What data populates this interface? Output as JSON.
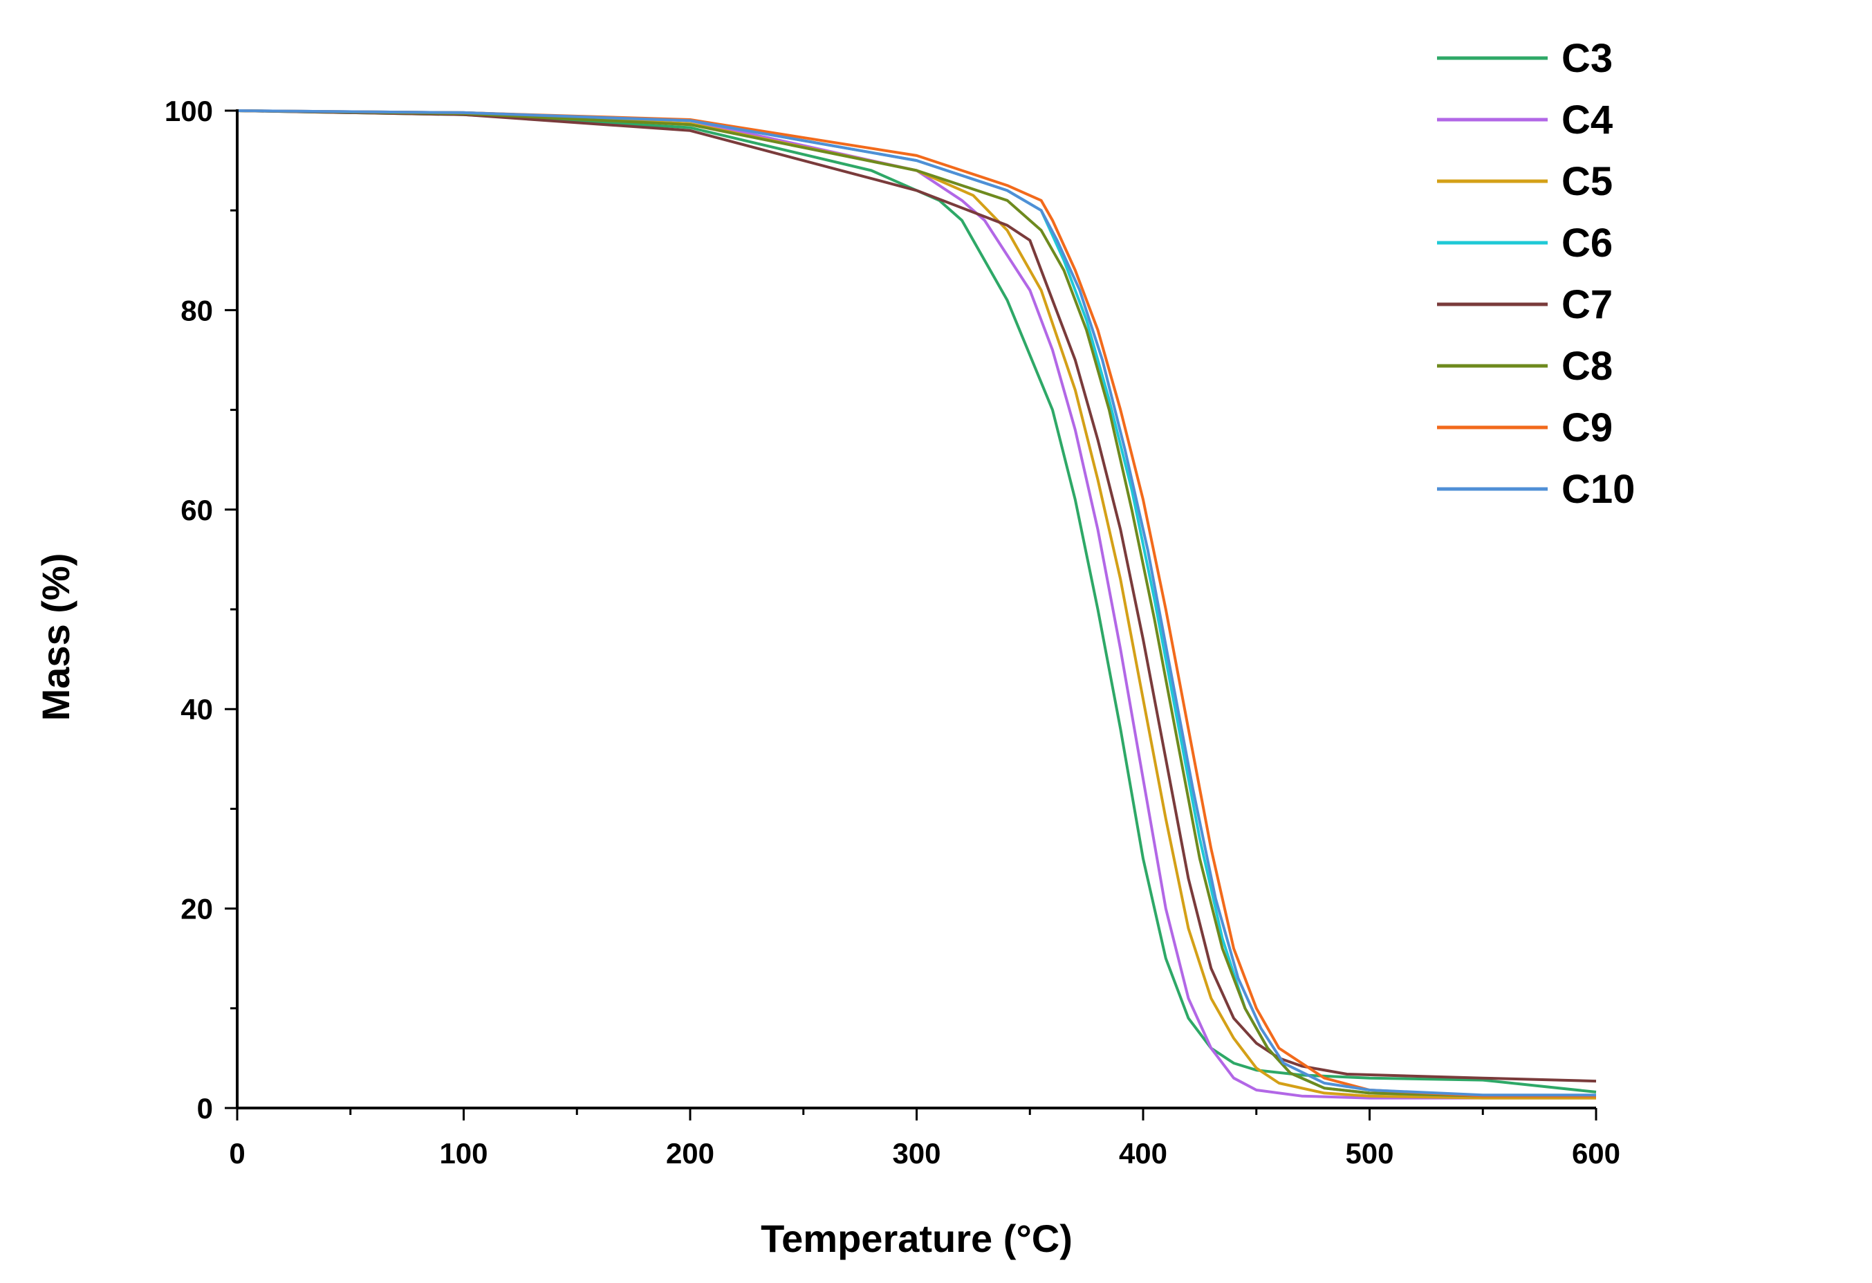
{
  "chart_data": {
    "type": "line",
    "title": "",
    "xlabel": "Temperature (°C)",
    "ylabel": "Mass (%)",
    "xlim": [
      0,
      600
    ],
    "ylim": [
      0,
      100
    ],
    "xticks": [
      0,
      100,
      200,
      300,
      400,
      500,
      600
    ],
    "yticks": [
      0,
      20,
      40,
      60,
      80,
      100
    ],
    "xtick_labels": [
      "0",
      "100",
      "200",
      "300",
      "400",
      "500",
      "600"
    ],
    "ytick_labels": [
      "0",
      "20",
      "40",
      "60",
      "80",
      "100"
    ],
    "grid": false,
    "legend_position": "top-right",
    "series": [
      {
        "name": "C3",
        "color": "#2EA867",
        "x": [
          0,
          100,
          200,
          280,
          310,
          320,
          340,
          360,
          370,
          380,
          390,
          400,
          410,
          420,
          430,
          440,
          450,
          470,
          500,
          550,
          600
        ],
        "y": [
          100,
          99.6,
          98.3,
          94,
          91,
          89,
          81,
          70,
          61,
          50,
          38,
          25,
          15,
          9,
          6,
          4.5,
          3.8,
          3.3,
          3.0,
          2.8,
          1.6
        ]
      },
      {
        "name": "C4",
        "color": "#B267E6",
        "x": [
          0,
          100,
          200,
          300,
          320,
          330,
          350,
          360,
          370,
          380,
          390,
          400,
          410,
          420,
          430,
          440,
          450,
          470,
          500,
          550,
          600
        ],
        "y": [
          100,
          99.8,
          99.0,
          94,
          91,
          89,
          82,
          76,
          68,
          58,
          46,
          33,
          20,
          11,
          6,
          3,
          1.8,
          1.2,
          1.0,
          1.0,
          1.0
        ]
      },
      {
        "name": "C5",
        "color": "#D4A017",
        "x": [
          0,
          100,
          200,
          300,
          325,
          340,
          355,
          370,
          380,
          390,
          400,
          410,
          420,
          430,
          440,
          450,
          460,
          480,
          500,
          550,
          600
        ],
        "y": [
          100,
          99.7,
          98.7,
          94,
          91.5,
          88,
          82,
          72,
          63,
          53,
          41,
          29,
          18,
          11,
          7,
          4,
          2.5,
          1.5,
          1.2,
          1.0,
          1.0
        ]
      },
      {
        "name": "C6",
        "color": "#1FC9D6",
        "x": [
          0,
          100,
          200,
          300,
          340,
          355,
          365,
          375,
          385,
          395,
          405,
          415,
          425,
          435,
          445,
          455,
          465,
          480,
          500,
          550,
          600
        ],
        "y": [
          100,
          99.8,
          99.0,
          95,
          92,
          90,
          85,
          79,
          71,
          62,
          51,
          39,
          27,
          17,
          10,
          6,
          3.5,
          2.0,
          1.5,
          1.2,
          1.2
        ]
      },
      {
        "name": "C7",
        "color": "#7A3B3B",
        "x": [
          0,
          100,
          200,
          300,
          340,
          350,
          360,
          370,
          380,
          390,
          400,
          410,
          420,
          430,
          440,
          450,
          460,
          470,
          490,
          550,
          600
        ],
        "y": [
          100,
          99.6,
          98.0,
          92,
          88.5,
          87,
          81,
          75,
          67,
          58,
          47,
          35,
          23,
          14,
          9,
          6.5,
          5,
          4.2,
          3.4,
          3.0,
          2.7
        ]
      },
      {
        "name": "C8",
        "color": "#6E8A1E",
        "x": [
          0,
          100,
          200,
          300,
          340,
          355,
          365,
          375,
          385,
          395,
          405,
          415,
          425,
          435,
          445,
          455,
          465,
          480,
          500,
          550,
          600
        ],
        "y": [
          100,
          99.7,
          98.6,
          94,
          91,
          88,
          84,
          78,
          70,
          60,
          49,
          37,
          25,
          16,
          10,
          6,
          3.5,
          2,
          1.5,
          1.2,
          1.2
        ]
      },
      {
        "name": "C9",
        "color": "#F26A1B",
        "x": [
          0,
          100,
          200,
          300,
          340,
          355,
          360,
          370,
          380,
          390,
          400,
          410,
          420,
          430,
          440,
          450,
          460,
          480,
          500,
          550,
          600
        ],
        "y": [
          100,
          99.8,
          99.1,
          95.5,
          92.5,
          91,
          89,
          84,
          78,
          70,
          61,
          50,
          38,
          26,
          16,
          10,
          6,
          3,
          1.8,
          1.2,
          1.2
        ]
      },
      {
        "name": "C10",
        "color": "#4F8FD6",
        "x": [
          0,
          100,
          200,
          300,
          340,
          355,
          362,
          372,
          382,
          392,
          402,
          412,
          422,
          432,
          442,
          452,
          462,
          480,
          500,
          550,
          600
        ],
        "y": [
          100,
          99.8,
          99.0,
          95,
          92,
          90,
          87,
          82,
          75,
          66,
          56,
          44,
          32,
          21,
          13,
          8,
          4.5,
          2.5,
          1.8,
          1.3,
          1.3
        ]
      }
    ]
  }
}
